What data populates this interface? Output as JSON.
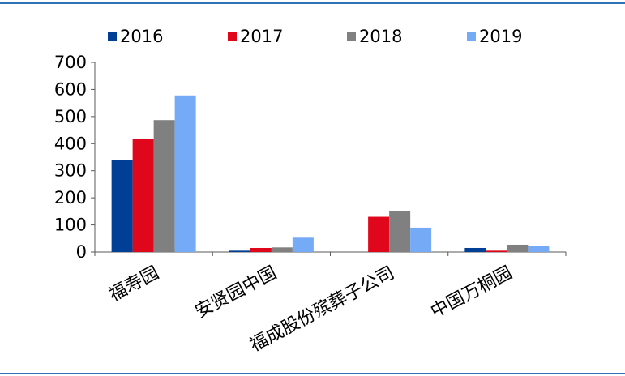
{
  "colors": {
    "rule": "#2e74b5",
    "axis": "#595959"
  },
  "chart_data": {
    "type": "bar",
    "categories": [
      "福寿园",
      "安贤园中国",
      "福成股份殡葬子公司",
      "中国万桐园"
    ],
    "series": [
      {
        "name": "2016",
        "color": "#003f96",
        "values": [
          338,
          5,
          0,
          15
        ]
      },
      {
        "name": "2017",
        "color": "#e0061b",
        "values": [
          417,
          15,
          130,
          5
        ]
      },
      {
        "name": "2018",
        "color": "#808080",
        "values": [
          487,
          17,
          150,
          27
        ]
      },
      {
        "name": "2019",
        "color": "#75aaf7",
        "values": [
          578,
          53,
          90,
          23
        ]
      }
    ],
    "yticks": [
      "0",
      "100",
      "200",
      "300",
      "400",
      "500",
      "600",
      "700"
    ],
    "ylim": [
      0,
      700
    ],
    "grid": false,
    "legend": "top"
  }
}
